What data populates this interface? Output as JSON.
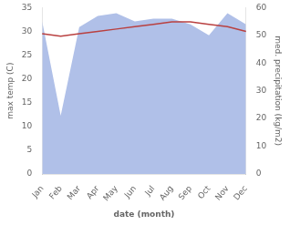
{
  "chart_data": {
    "type": "line",
    "categories": [
      "Jan",
      "Feb",
      "Mar",
      "Apr",
      "May",
      "Jun",
      "Jul",
      "Aug",
      "Sep",
      "Oct",
      "Nov",
      "Dec"
    ],
    "series": [
      {
        "type": "area",
        "color": "#b0c0e8",
        "axis": "y2",
        "values": [
          55,
          21,
          53,
          57,
          58,
          55,
          56,
          56,
          54,
          50,
          58,
          54
        ]
      },
      {
        "type": "line",
        "color": "#b94040",
        "values": [
          29.5,
          29.0,
          29.5,
          30.0,
          30.5,
          31.0,
          31.5,
          32.0,
          32.0,
          31.5,
          31.0,
          30.0
        ]
      }
    ],
    "xlabel": "date (month)",
    "ylabel": "max temp (C)",
    "y2label": "med. precipitation (kg/m2)",
    "ylim": [
      0,
      35
    ],
    "yticks": [
      0,
      5,
      10,
      15,
      20,
      25,
      30,
      35
    ],
    "y2lim": [
      0,
      60
    ],
    "y2ticks": [
      0,
      10,
      20,
      30,
      40,
      50,
      60
    ],
    "grid": false
  }
}
